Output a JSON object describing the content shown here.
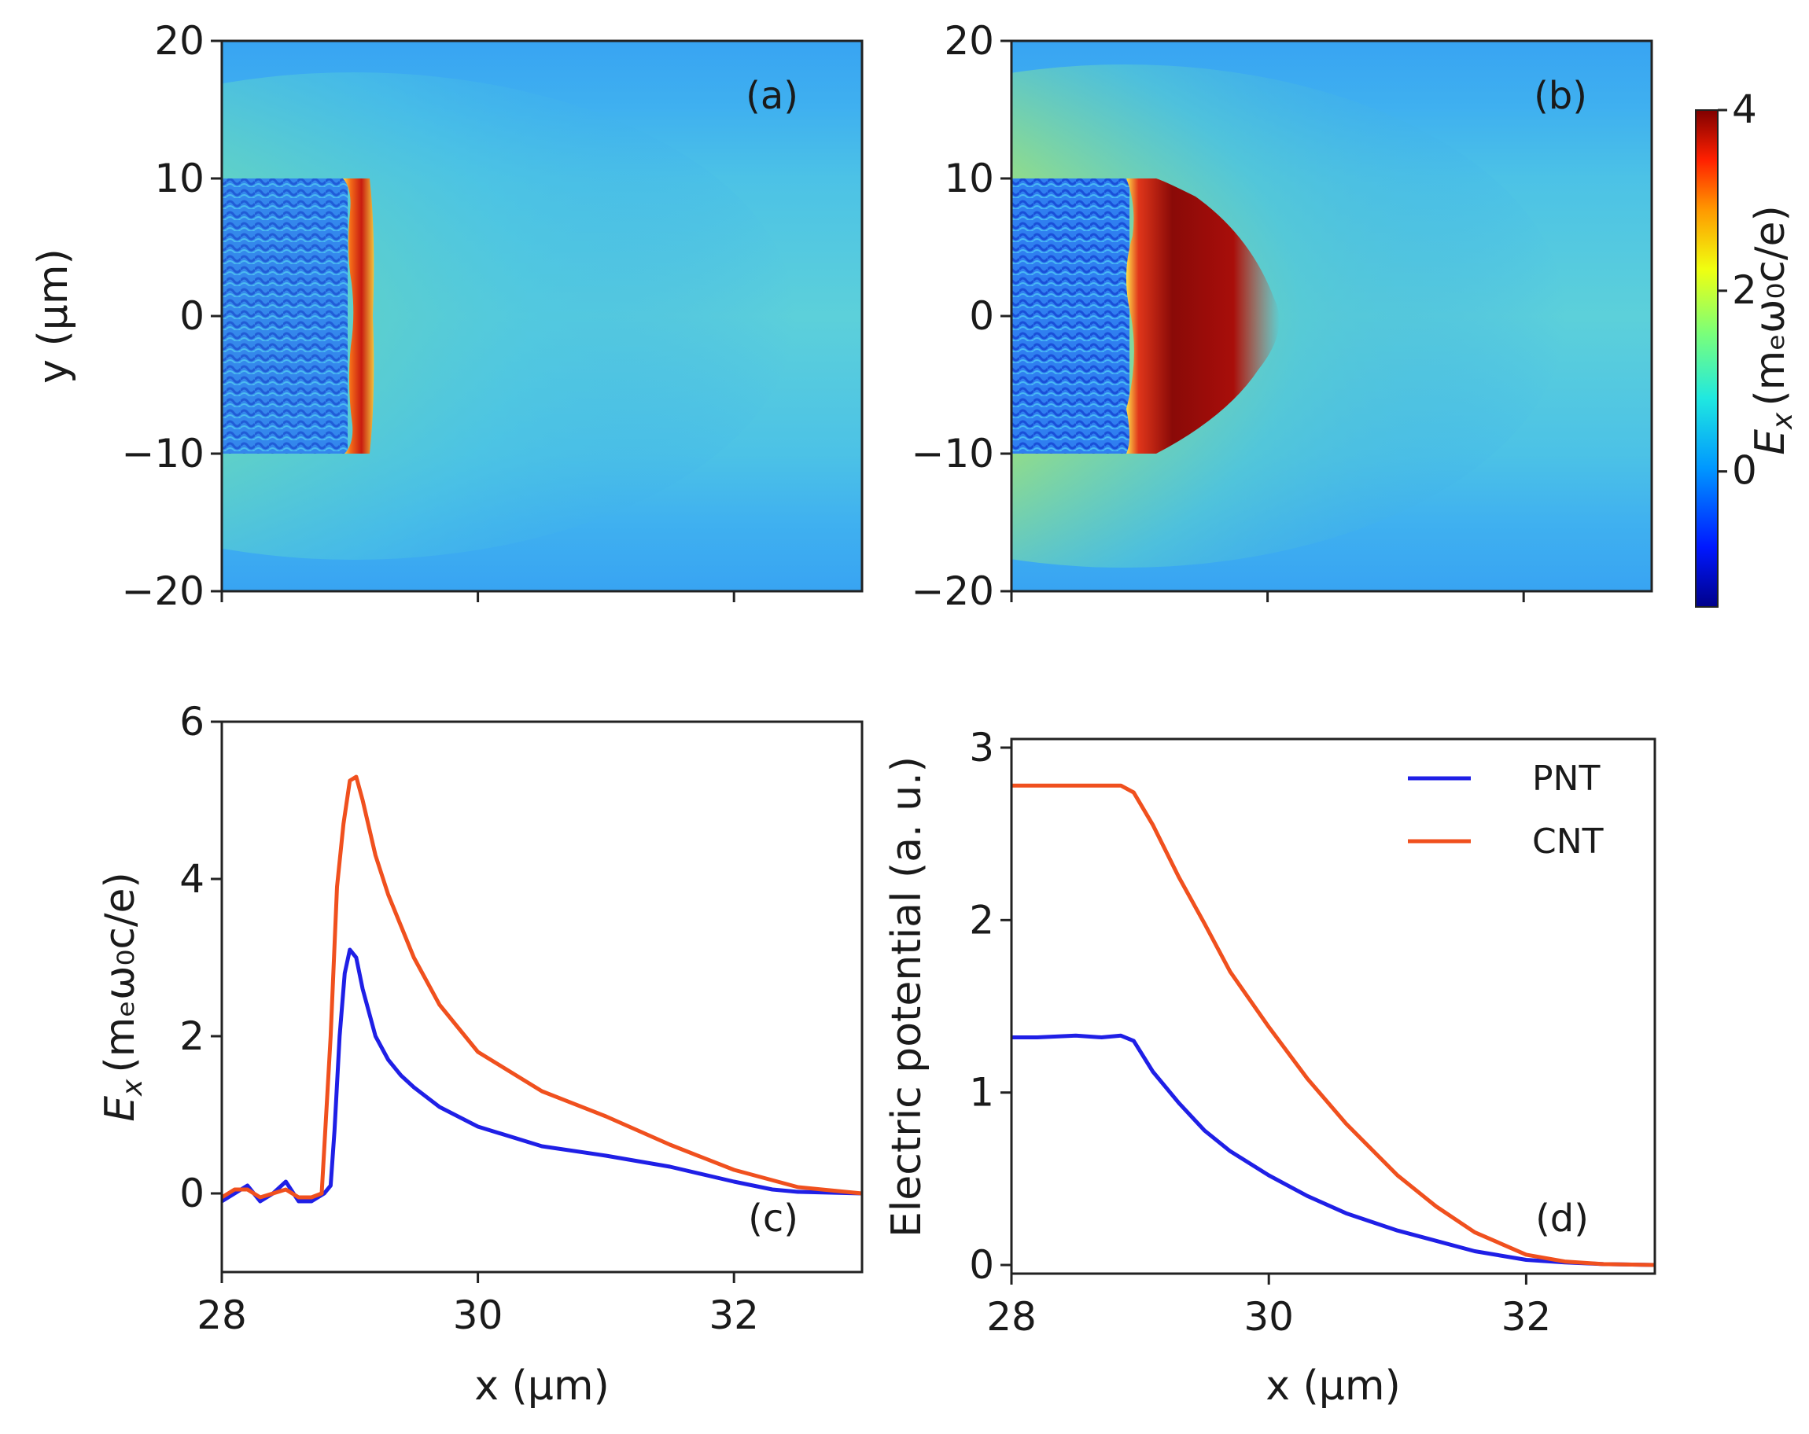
{
  "panels": {
    "a": {
      "label": "(a)"
    },
    "b": {
      "label": "(b)"
    },
    "c": {
      "label": "(c)"
    },
    "d": {
      "label": "(d)"
    }
  },
  "axes": {
    "y_label_top": "y (μm)",
    "x_label": "x (μm)",
    "ex_label_main": "E",
    "ex_label_sub": "x",
    "ex_label_units": "(mₑω₀c/e)",
    "potential_label": "Electric potential (a. u.)",
    "colorbar_label": "E_x (mₑω₀c/e)"
  },
  "legend": {
    "pnt": "PNT",
    "cnt": "CNT"
  },
  "colors": {
    "pnt": "#1f1fe6",
    "cnt": "#f0501e",
    "field_bg": "#2f9cf0"
  },
  "chart_data": [
    {
      "id": "a",
      "type": "heatmap",
      "title": "(a)",
      "xlim": [
        28,
        33
      ],
      "ylim": [
        -20,
        20
      ],
      "y_ticks": [
        "20",
        "10",
        "0",
        "−10",
        "−20"
      ],
      "ylabel": "y (μm)",
      "front_x": 28.95,
      "peak_value": 3.1,
      "target_y_range": [
        -10,
        10
      ]
    },
    {
      "id": "b",
      "type": "heatmap",
      "title": "(b)",
      "xlim": [
        28,
        33
      ],
      "ylim": [
        -20,
        20
      ],
      "y_ticks": [
        "20",
        "10",
        "0",
        "−10",
        "−20"
      ],
      "front_x": 28.8,
      "peak_value": 5.3,
      "target_y_range": [
        -10,
        10
      ],
      "colorbar": {
        "min": -1.5,
        "max": 4,
        "ticks": [
          "4",
          "2",
          "0"
        ],
        "label": "E_x (mₑω₀c/e)"
      }
    },
    {
      "id": "c",
      "type": "line",
      "title": "(c)",
      "xlim": [
        28,
        33
      ],
      "ylim": [
        -1,
        6
      ],
      "x_ticks": [
        "28",
        "30",
        "32"
      ],
      "y_ticks": [
        "6",
        "4",
        "2",
        "0"
      ],
      "xlabel": "x (μm)",
      "ylabel": "E_x (mₑω₀c/e)",
      "series": [
        {
          "name": "PNT",
          "x": [
            28.0,
            28.1,
            28.2,
            28.3,
            28.4,
            28.5,
            28.6,
            28.7,
            28.8,
            28.85,
            28.88,
            28.92,
            28.96,
            29.0,
            29.05,
            29.1,
            29.2,
            29.3,
            29.4,
            29.5,
            29.7,
            30.0,
            30.5,
            31.0,
            31.5,
            32.0,
            32.3,
            32.5,
            33.0
          ],
          "y": [
            -0.1,
            0.0,
            0.1,
            -0.1,
            0.0,
            0.15,
            -0.1,
            -0.1,
            0.0,
            0.1,
            0.8,
            2.0,
            2.8,
            3.1,
            3.0,
            2.6,
            2.0,
            1.7,
            1.5,
            1.35,
            1.1,
            0.85,
            0.6,
            0.48,
            0.34,
            0.15,
            0.05,
            0.02,
            0.0
          ]
        },
        {
          "name": "CNT",
          "x": [
            28.0,
            28.1,
            28.2,
            28.3,
            28.4,
            28.5,
            28.6,
            28.7,
            28.78,
            28.85,
            28.9,
            28.95,
            29.0,
            29.05,
            29.1,
            29.2,
            29.3,
            29.4,
            29.5,
            29.7,
            30.0,
            30.5,
            31.0,
            31.5,
            32.0,
            32.5,
            33.0
          ],
          "y": [
            -0.05,
            0.05,
            0.05,
            -0.05,
            0.0,
            0.05,
            -0.05,
            -0.05,
            0.0,
            2.0,
            3.9,
            4.7,
            5.25,
            5.3,
            5.0,
            4.3,
            3.8,
            3.4,
            3.0,
            2.4,
            1.8,
            1.3,
            0.98,
            0.62,
            0.3,
            0.08,
            0.0
          ]
        }
      ]
    },
    {
      "id": "d",
      "type": "line",
      "title": "(d)",
      "xlim": [
        28,
        33
      ],
      "ylim": [
        -0.05,
        3.05
      ],
      "x_ticks": [
        "28",
        "30",
        "32"
      ],
      "y_ticks": [
        "3",
        "2",
        "1",
        "0"
      ],
      "xlabel": "x (μm)",
      "ylabel": "Electric potential (a. u.)",
      "legend": "top-right",
      "series": [
        {
          "name": "PNT",
          "x": [
            28.0,
            28.2,
            28.5,
            28.7,
            28.85,
            28.95,
            29.1,
            29.3,
            29.5,
            29.7,
            30.0,
            30.3,
            30.6,
            31.0,
            31.3,
            31.6,
            32.0,
            32.3,
            32.6,
            33.0
          ],
          "y": [
            1.32,
            1.32,
            1.33,
            1.32,
            1.33,
            1.3,
            1.12,
            0.94,
            0.78,
            0.66,
            0.52,
            0.4,
            0.3,
            0.2,
            0.14,
            0.08,
            0.03,
            0.015,
            0.005,
            0.0
          ]
        },
        {
          "name": "CNT",
          "x": [
            28.0,
            28.3,
            28.6,
            28.85,
            28.95,
            29.1,
            29.3,
            29.5,
            29.7,
            30.0,
            30.3,
            30.6,
            31.0,
            31.3,
            31.6,
            32.0,
            32.3,
            32.6,
            33.0
          ],
          "y": [
            2.78,
            2.78,
            2.78,
            2.78,
            2.74,
            2.55,
            2.25,
            1.98,
            1.7,
            1.38,
            1.08,
            0.82,
            0.52,
            0.34,
            0.19,
            0.06,
            0.02,
            0.005,
            0.0
          ]
        }
      ]
    }
  ]
}
